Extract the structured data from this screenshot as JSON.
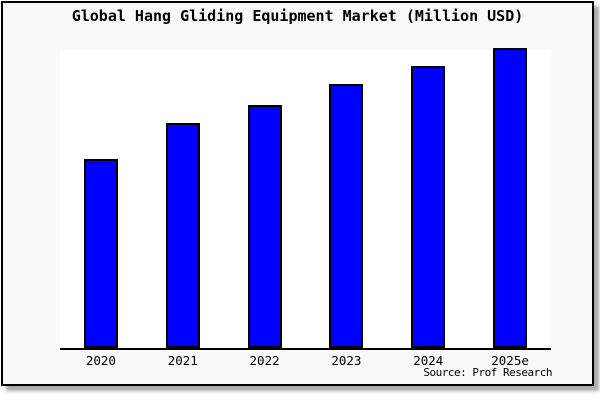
{
  "source_label": "Source: Prof Research",
  "colors": {
    "bar_fill": "#0000ff",
    "bar_border": "#000000",
    "frame_background": "#f9f9f9",
    "plot_background": "#ffffff",
    "axis": "#000000",
    "text": "#000000"
  },
  "chart_data": {
    "type": "bar",
    "title": "Global Hang Gliding Equipment Market (Million USD)",
    "categories": [
      "2020",
      "2021",
      "2022",
      "2023",
      "2024",
      "2025e"
    ],
    "values": [
      63,
      75,
      81,
      88,
      94,
      100
    ],
    "value_note": "relative bar heights as percent of tallest (2025e) bar; no y-axis or value labels are shown in the chart",
    "xlabel": "",
    "ylabel": "",
    "ylim": [
      0,
      100
    ],
    "grid": false,
    "legend": false,
    "source": "Source: Prof Research"
  }
}
